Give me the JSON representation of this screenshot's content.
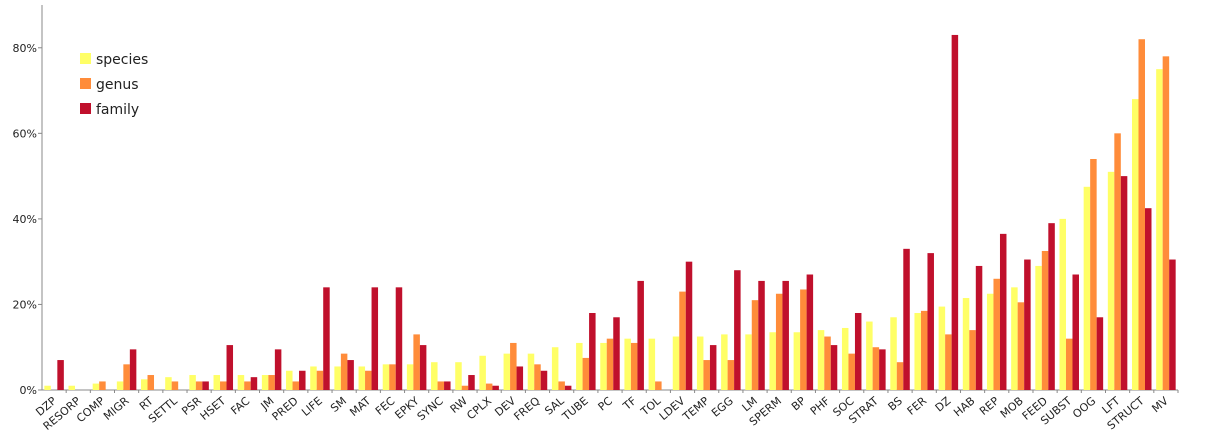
{
  "chart_data": {
    "type": "bar",
    "categories": [
      "DZP",
      "RESORP",
      "COMP",
      "MIGR",
      "RT",
      "SETTL",
      "PSR",
      "HSET",
      "FAC",
      "JM",
      "PRED",
      "LIFE",
      "SM",
      "MAT",
      "FEC",
      "EPKY",
      "SYNC",
      "RW",
      "CPLX",
      "DEV",
      "FREQ",
      "SAL",
      "TUBE",
      "PC",
      "TF",
      "TOL",
      "LDEV",
      "TEMP",
      "EGG",
      "LM",
      "SPERM",
      "BP",
      "PHF",
      "SOC",
      "STRAT",
      "BS",
      "FER",
      "DZ",
      "HAB",
      "REP",
      "MOB",
      "FEED",
      "SUBST",
      "OOG",
      "LFT",
      "STRUCT",
      "MV"
    ],
    "series": [
      {
        "name": "species",
        "color": "#ffff66",
        "values": [
          1,
          1,
          1.5,
          2,
          2.5,
          3,
          3.5,
          3.5,
          3.5,
          3.5,
          4.5,
          5.5,
          5.5,
          5.5,
          6,
          6,
          6.5,
          6.5,
          8,
          8.5,
          8.5,
          10,
          11,
          11,
          12,
          12,
          12.5,
          12.5,
          13,
          13,
          13.5,
          13.5,
          14,
          14.5,
          16,
          17,
          18,
          19.5,
          21.5,
          22.5,
          24,
          29,
          40,
          47.5,
          51,
          68,
          75
        ]
      },
      {
        "name": "genus",
        "color": "#ff8c3a",
        "values": [
          0,
          0,
          2,
          6,
          3.5,
          2,
          2,
          2,
          2,
          3.5,
          2,
          4.5,
          8.5,
          4.5,
          6,
          13,
          2,
          1,
          1.5,
          11,
          6,
          2,
          7.5,
          12,
          11,
          2,
          23,
          7,
          7,
          21,
          22.5,
          23.5,
          12.5,
          8.5,
          10,
          6.5,
          18.5,
          13,
          14,
          26,
          20.5,
          32.5,
          12,
          54,
          60,
          82,
          78
        ]
      },
      {
        "name": "family",
        "color": "#c0102c",
        "values": [
          7,
          0,
          0,
          9.5,
          0,
          0,
          2,
          10.5,
          3,
          9.5,
          4.5,
          24,
          7,
          24,
          24,
          10.5,
          2,
          3.5,
          1,
          5.5,
          4.5,
          1,
          18,
          17,
          25.5,
          0,
          30,
          10.5,
          28,
          25.5,
          25.5,
          27,
          10.5,
          18,
          9.5,
          33,
          32,
          83,
          29,
          36.5,
          30.5,
          39,
          27,
          17,
          50,
          42.5,
          30.5
        ]
      }
    ],
    "ylim": [
      0,
      90
    ],
    "yticks": [
      {
        "value": 0,
        "label": "0%"
      },
      {
        "value": 20,
        "label": "20%"
      },
      {
        "value": 40,
        "label": "40%"
      },
      {
        "value": 60,
        "label": "60%"
      },
      {
        "value": 80,
        "label": "80%"
      }
    ]
  }
}
